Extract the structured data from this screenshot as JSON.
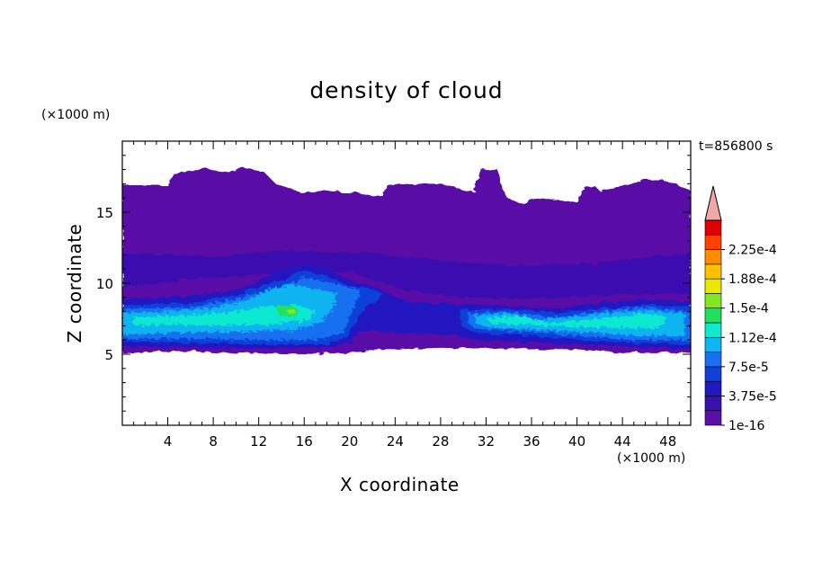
{
  "chart_data": {
    "type": "heatmap",
    "title": "density of cloud",
    "xlabel": "X coordinate",
    "ylabel": "Z coordinate",
    "x_unit": "(×1000 m)",
    "y_unit": "(×1000 m)",
    "time_label": "t=856800 s",
    "xlim": [
      0,
      50
    ],
    "ylim": [
      0,
      20
    ],
    "x_ticks": [
      4,
      8,
      12,
      16,
      20,
      24,
      28,
      32,
      36,
      40,
      44,
      48
    ],
    "y_ticks": [
      5,
      10,
      15
    ],
    "colorbar": {
      "levels": [
        1e-16,
        1.875e-05,
        3.75e-05,
        5.625e-05,
        7.5e-05,
        9.375e-05,
        0.0001125,
        0.00013125,
        0.00015,
        0.00016875,
        0.0001875,
        0.00020625,
        0.000225,
        0.00024375
      ],
      "tick_labels": [
        "1e-16",
        "3.75e-5",
        "7.5e-5",
        "1.12e-4",
        "1.5e-4",
        "1.88e-4",
        "2.25e-4"
      ],
      "colors": [
        "#5a0fa6",
        "#3a10b0",
        "#2018c0",
        "#1040d8",
        "#1870f0",
        "#10b4f0",
        "#10e8d0",
        "#20e060",
        "#80e820",
        "#e8e800",
        "#ffc000",
        "#ff8c00",
        "#ff4000",
        "#e00000"
      ],
      "extend_color": "#f0a8a8"
    },
    "regions": [
      {
        "name": "cloud-layer",
        "z_range": [
          5,
          18
        ],
        "level": 0
      },
      {
        "name": "lower-cloud-left",
        "x_range": [
          0,
          20
        ],
        "z_range": [
          5.5,
          11
        ],
        "max_level": 8
      },
      {
        "name": "lower-cloud-right",
        "x_range": [
          30,
          50
        ],
        "z_range": [
          5.5,
          8.5
        ],
        "max_level": 7
      }
    ]
  }
}
